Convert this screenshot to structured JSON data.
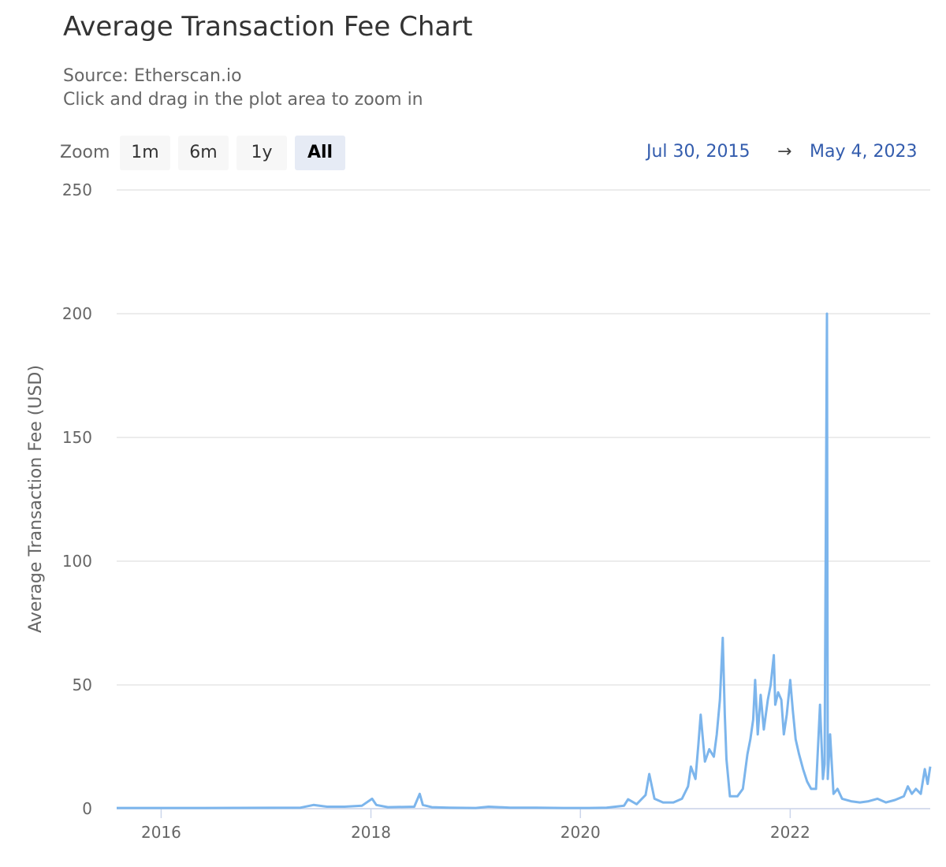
{
  "header": {
    "title": "Average Transaction Fee Chart",
    "source": "Source: Etherscan.io",
    "hint": "Click and drag in the plot area to zoom in"
  },
  "zoom": {
    "label": "Zoom",
    "buttons": [
      "1m",
      "6m",
      "1y",
      "All"
    ],
    "active": "All"
  },
  "range": {
    "from": "Jul 30, 2015",
    "arrow": "→",
    "to": "May 4, 2023"
  },
  "chart_data": {
    "type": "line",
    "ylabel": "Average Transaction Fee (USD)",
    "xlabel": "",
    "ylim": [
      0,
      250
    ],
    "yticks": [
      0,
      50,
      100,
      150,
      200,
      250
    ],
    "xlim": [
      "2015-07-30",
      "2023-05-04"
    ],
    "xticks": [
      "2016",
      "2018",
      "2020",
      "2022"
    ],
    "grid": true,
    "line_color": "#7cb5ec",
    "series": [
      {
        "x": [
          "2015-07-30",
          "2016-06-01",
          "2017-05-01",
          "2017-06-15",
          "2017-08-01",
          "2017-10-01",
          "2017-12-01",
          "2018-01-05",
          "2018-01-20",
          "2018-03-01",
          "2018-06-01",
          "2018-06-20",
          "2018-07-01",
          "2018-08-01",
          "2018-10-01",
          "2019-01-01",
          "2019-02-15",
          "2019-05-01",
          "2019-08-01",
          "2019-11-01",
          "2020-02-01",
          "2020-04-01",
          "2020-06-01",
          "2020-06-15",
          "2020-07-15",
          "2020-08-15",
          "2020-08-28",
          "2020-09-15",
          "2020-10-15",
          "2020-11-20",
          "2020-12-20",
          "2021-01-10",
          "2021-01-20",
          "2021-02-05",
          "2021-02-15",
          "2021-02-23",
          "2021-03-10",
          "2021-03-25",
          "2021-04-10",
          "2021-04-20",
          "2021-05-01",
          "2021-05-11",
          "2021-05-18",
          "2021-05-24",
          "2021-06-05",
          "2021-07-01",
          "2021-07-20",
          "2021-08-05",
          "2021-08-15",
          "2021-08-25",
          "2021-09-01",
          "2021-09-10",
          "2021-09-20",
          "2021-10-01",
          "2021-10-15",
          "2021-10-25",
          "2021-11-05",
          "2021-11-10",
          "2021-11-20",
          "2021-12-01",
          "2021-12-10",
          "2021-12-20",
          "2022-01-01",
          "2022-01-10",
          "2022-01-20",
          "2022-02-01",
          "2022-02-15",
          "2022-03-01",
          "2022-03-15",
          "2022-04-01",
          "2022-04-15",
          "2022-04-25",
          "2022-05-01",
          "2022-05-09",
          "2022-05-12",
          "2022-05-20",
          "2022-06-01",
          "2022-06-15",
          "2022-07-01",
          "2022-08-01",
          "2022-09-01",
          "2022-10-01",
          "2022-11-01",
          "2022-12-01",
          "2023-01-01",
          "2023-02-01",
          "2023-02-15",
          "2023-03-01",
          "2023-03-15",
          "2023-04-01",
          "2023-04-15",
          "2023-04-25",
          "2023-05-04"
        ],
        "y": [
          0.3,
          0.3,
          0.4,
          1.5,
          0.8,
          0.8,
          1.2,
          4.0,
          1.5,
          0.6,
          0.8,
          6.0,
          1.5,
          0.6,
          0.4,
          0.3,
          0.8,
          0.4,
          0.4,
          0.3,
          0.3,
          0.4,
          1.2,
          3.8,
          1.8,
          5.5,
          14.0,
          4.0,
          2.5,
          2.5,
          4.0,
          9.0,
          17.0,
          12.0,
          26.0,
          38.0,
          19.0,
          24.0,
          21.0,
          30.0,
          44.0,
          69.0,
          38.0,
          20.0,
          5.0,
          5.0,
          8.0,
          22.0,
          28.0,
          36.0,
          52.0,
          30.0,
          46.0,
          32.0,
          44.0,
          50.0,
          62.0,
          42.0,
          47.0,
          44.0,
          30.0,
          38.0,
          52.0,
          40.0,
          28.0,
          22.0,
          16.0,
          11.0,
          8.0,
          8.0,
          42.0,
          12.0,
          18.0,
          200.0,
          12.0,
          30.0,
          6.0,
          8.0,
          4.0,
          3.0,
          2.5,
          3.0,
          4.0,
          2.5,
          3.5,
          5.0,
          9.0,
          6.0,
          8.0,
          6.0,
          16.0,
          10.0,
          17.0
        ]
      }
    ]
  }
}
